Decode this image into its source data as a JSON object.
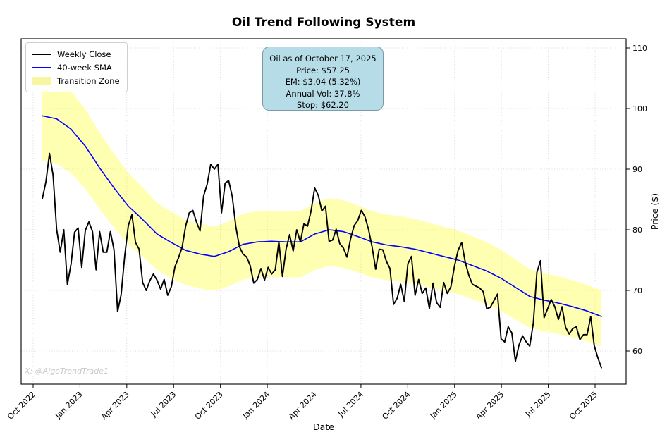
{
  "title": "Oil Trend Following System",
  "watermark": "X: @AlgoTrendTrade1",
  "legend": {
    "items": [
      {
        "label": "Weekly Close",
        "color": "#000000",
        "type": "line"
      },
      {
        "label": "40-week SMA",
        "color": "#0000ff",
        "type": "line"
      },
      {
        "label": "Transition Zone",
        "color": "#f7f7a2",
        "type": "patch"
      }
    ]
  },
  "info_box": {
    "bg_color": "#b5dce7",
    "lines": [
      "Oil as of October 17, 2025",
      "Price: $57.25",
      "EM: $3.04 (5.32%)",
      "Annual Vol: 37.8%",
      "Stop: $62.20"
    ]
  },
  "chart_data": {
    "type": "line",
    "title": "Oil Trend Following System",
    "xlabel": "Date",
    "ylabel": "Price ($)",
    "frequency": "weekly",
    "x_start": "Oct 2022",
    "x_end": "Oct 2025",
    "ylim": [
      54.5,
      111.5
    ],
    "yticks": [
      60,
      70,
      80,
      90,
      100,
      110
    ],
    "xticks": [
      "Oct 2022",
      "Jan 2023",
      "Apr 2023",
      "Jul 2023",
      "Oct 2023",
      "Jan 2024",
      "Apr 2024",
      "Jul 2024",
      "Oct 2024",
      "Jan 2025",
      "Apr 2025",
      "Jul 2025",
      "Oct 2025"
    ],
    "grid": true,
    "legend_position": "upper left",
    "y_axis_side": "right",
    "series": [
      {
        "name": "Weekly Close",
        "color": "#000000",
        "values": [
          85.1,
          87.9,
          92.6,
          89.0,
          80.1,
          76.3,
          80.0,
          71.0,
          74.3,
          79.6,
          80.3,
          73.8,
          79.9,
          81.3,
          79.7,
          73.4,
          79.7,
          76.3,
          76.3,
          79.7,
          76.7,
          66.5,
          69.3,
          75.7,
          80.7,
          82.5,
          77.9,
          76.8,
          71.3,
          70.0,
          71.6,
          72.7,
          71.7,
          70.2,
          71.8,
          69.2,
          70.6,
          73.9,
          75.4,
          77.1,
          80.6,
          82.8,
          83.2,
          81.3,
          79.8,
          85.6,
          87.5,
          90.8,
          90.0,
          90.8,
          82.8,
          87.7,
          88.1,
          85.5,
          80.5,
          77.2,
          76.0,
          75.5,
          74.1,
          71.2,
          71.8,
          73.6,
          71.7,
          73.8,
          72.7,
          73.4,
          78.0,
          72.3,
          76.8,
          79.2,
          76.5,
          80.0,
          78.0,
          81.0,
          80.6,
          83.2,
          86.9,
          85.7,
          83.1,
          83.9,
          78.1,
          78.3,
          80.1,
          77.7,
          77.0,
          75.5,
          78.5,
          80.7,
          81.5,
          83.2,
          82.2,
          80.1,
          77.2,
          73.5,
          76.8,
          76.7,
          74.8,
          73.6,
          67.7,
          68.7,
          71.0,
          68.2,
          74.4,
          75.6,
          69.2,
          71.8,
          69.5,
          70.4,
          67.0,
          71.2,
          68.0,
          67.2,
          71.3,
          69.5,
          70.6,
          74.0,
          76.6,
          77.9,
          74.7,
          72.5,
          71.0,
          70.7,
          70.4,
          69.8,
          67.0,
          67.2,
          68.3,
          69.4,
          62.0,
          61.5,
          64.0,
          63.0,
          58.3,
          61.0,
          62.5,
          61.5,
          60.8,
          64.6,
          73.0,
          74.9,
          65.5,
          67.0,
          68.5,
          67.3,
          65.2,
          67.3,
          63.9,
          62.8,
          63.7,
          64.0,
          61.9,
          62.7,
          62.7,
          65.7,
          60.9,
          58.9,
          57.25
        ]
      },
      {
        "name": "40-week SMA",
        "color": "#0000ff",
        "values": [
          98.8,
          98.68,
          98.55,
          98.43,
          98.3,
          97.88,
          97.45,
          97.03,
          96.6,
          95.9,
          95.2,
          94.5,
          93.8,
          92.9,
          92.0,
          91.1,
          90.2,
          89.38,
          88.55,
          87.73,
          86.9,
          86.15,
          85.4,
          84.65,
          83.9,
          83.35,
          82.8,
          82.25,
          81.7,
          81.1,
          80.5,
          79.9,
          79.3,
          78.95,
          78.6,
          78.25,
          77.9,
          77.58,
          77.25,
          76.93,
          76.6,
          76.45,
          76.3,
          76.15,
          76.0,
          75.9,
          75.8,
          75.7,
          75.6,
          75.8,
          76.0,
          76.2,
          76.4,
          76.7,
          77.0,
          77.3,
          77.6,
          77.7,
          77.8,
          77.9,
          78.0,
          78.03,
          78.05,
          78.08,
          78.1,
          78.08,
          78.05,
          78.03,
          78.0,
          78.0,
          78.0,
          78.0,
          78.0,
          78.33,
          78.65,
          78.98,
          79.3,
          79.48,
          79.65,
          79.83,
          80.0,
          79.93,
          79.85,
          79.78,
          79.7,
          79.5,
          79.3,
          79.1,
          78.9,
          78.68,
          78.45,
          78.23,
          78.0,
          77.88,
          77.75,
          77.63,
          77.5,
          77.43,
          77.35,
          77.28,
          77.2,
          77.1,
          77.0,
          76.9,
          76.8,
          76.65,
          76.5,
          76.35,
          76.2,
          76.05,
          75.9,
          75.75,
          75.6,
          75.45,
          75.3,
          75.15,
          75.0,
          74.78,
          74.55,
          74.33,
          74.1,
          73.88,
          73.65,
          73.43,
          73.2,
          72.9,
          72.6,
          72.3,
          72.0,
          71.63,
          71.25,
          70.88,
          70.5,
          70.13,
          69.75,
          69.38,
          69.0,
          68.85,
          68.7,
          68.55,
          68.4,
          68.28,
          68.15,
          68.03,
          67.9,
          67.75,
          67.6,
          67.45,
          67.3,
          67.13,
          66.95,
          66.78,
          66.6,
          66.38,
          66.15,
          65.93,
          65.7
        ]
      }
    ],
    "transition_zone": {
      "name": "Transition Zone",
      "basis": "40-week SMA",
      "upper_pct": 6.5,
      "lower_pct": 7.5,
      "color": "#ffff00",
      "opacity": 0.3
    },
    "key_stats": {
      "as_of": "October 17, 2025",
      "price": 57.25,
      "expected_move": 3.04,
      "expected_move_pct": 5.32,
      "annual_vol_pct": 37.8,
      "stop": 62.2
    }
  }
}
